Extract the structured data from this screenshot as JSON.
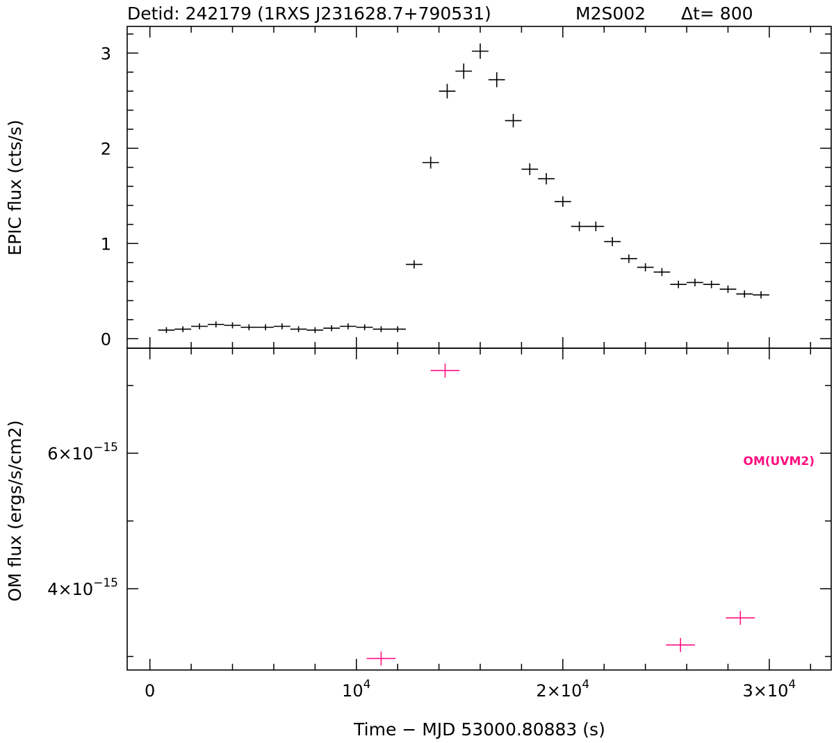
{
  "title": {
    "detid": "Detid: 242179 (1RXS J231628.7+790531)",
    "exposure": "M2S002",
    "delta_t": "Δt=  800"
  },
  "chart_data": [
    {
      "type": "scatter",
      "name": "EPIC",
      "ylabel": "EPIC flux (cts/s)",
      "xlabel": "",
      "xlim": [
        -1100,
        33000
      ],
      "ylim": [
        -0.1,
        3.28
      ],
      "x_ticks": [
        0,
        10000,
        20000,
        30000
      ],
      "y_ticks": [
        0,
        1,
        2,
        3
      ],
      "y_tick_labels": [
        "0",
        "1",
        "2",
        "3"
      ],
      "color": "#000000",
      "series": [
        {
          "x_halfwidth": 400,
          "points": [
            [
              800,
              0.09
            ],
            [
              1600,
              0.1
            ],
            [
              2400,
              0.13
            ],
            [
              3200,
              0.15
            ],
            [
              4000,
              0.14
            ],
            [
              4800,
              0.12
            ],
            [
              5600,
              0.12
            ],
            [
              6400,
              0.13
            ],
            [
              7200,
              0.1
            ],
            [
              8000,
              0.09
            ],
            [
              8800,
              0.11
            ],
            [
              9600,
              0.13
            ],
            [
              10400,
              0.12
            ],
            [
              11200,
              0.1
            ],
            [
              12000,
              0.1
            ],
            [
              12800,
              0.78
            ],
            [
              13600,
              1.85
            ],
            [
              14400,
              2.6
            ],
            [
              15200,
              2.81
            ],
            [
              16000,
              3.02
            ],
            [
              16800,
              2.72
            ],
            [
              17600,
              2.29
            ],
            [
              18400,
              1.78
            ],
            [
              19200,
              1.68
            ],
            [
              20000,
              1.44
            ],
            [
              20800,
              1.18
            ],
            [
              21600,
              1.18
            ],
            [
              22400,
              1.02
            ],
            [
              23200,
              0.84
            ],
            [
              24000,
              0.75
            ],
            [
              24800,
              0.7
            ],
            [
              25600,
              0.57
            ],
            [
              26400,
              0.59
            ],
            [
              27200,
              0.57
            ],
            [
              28000,
              0.52
            ],
            [
              28800,
              0.47
            ],
            [
              29600,
              0.46
            ]
          ]
        }
      ]
    },
    {
      "type": "scatter",
      "name": "OM",
      "ylabel": "OM flux (ergs/s/cm2)",
      "xlabel": "Time − MJD 53000.80883 (s)",
      "xlim": [
        -1100,
        33000
      ],
      "ylim": [
        2.8e-15,
        7.55e-15
      ],
      "x_ticks": [
        0,
        10000,
        20000,
        30000
      ],
      "x_tick_labels": [
        {
          "mant": "0",
          "exp": ""
        },
        {
          "mant": "10",
          "exp": "4"
        },
        {
          "mant": "2×10",
          "exp": "4"
        },
        {
          "mant": "3×10",
          "exp": "4"
        }
      ],
      "y_major_ticks": [
        4e-15,
        6e-15
      ],
      "y_minor_ticks": [
        3e-15,
        5e-15,
        7e-15
      ],
      "y_tick_labels": [
        {
          "mant": "4×10",
          "exp": "−15"
        },
        {
          "mant": "6×10",
          "exp": "−15"
        }
      ],
      "filter_label": "OM(UVM2)",
      "color": "#ff0f7f",
      "series": [
        {
          "name": "OM(UVM2)",
          "x_halfwidth": 700,
          "points": [
            [
              11200,
              2.97e-15
            ],
            [
              14300,
              7.22e-15
            ],
            [
              25700,
              3.17e-15
            ],
            [
              28600,
              3.57e-15
            ]
          ]
        }
      ]
    }
  ]
}
